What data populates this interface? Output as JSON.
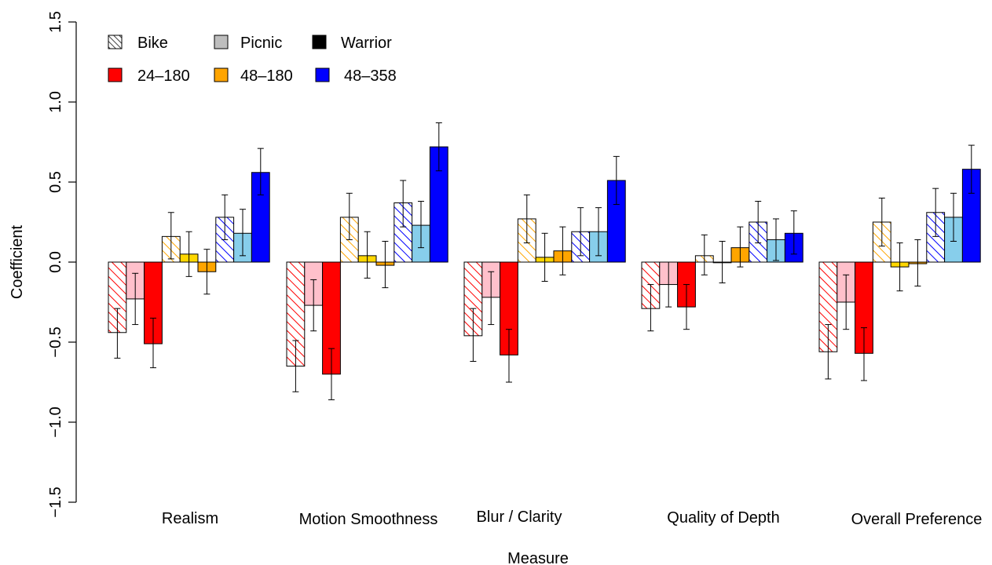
{
  "chart_data": {
    "type": "bar",
    "xlabel": "Measure",
    "ylabel": "Coefficient",
    "ylim": [
      -1.5,
      1.5
    ],
    "yticks": [
      "-1.5",
      "-1.0",
      "-0.5",
      "0.0",
      "0.5",
      "1.0",
      "1.5"
    ],
    "categories": [
      "Realism",
      "Motion Smoothness",
      "Blur / Clarity",
      "Quality of Depth",
      "Overall Preference"
    ],
    "legend": {
      "position": "top-left",
      "scenes": [
        {
          "label": "Bike",
          "style": "hatched"
        },
        {
          "label": "Picnic",
          "style": "light"
        },
        {
          "label": "Warrior",
          "style": "solid"
        }
      ],
      "conditions": [
        {
          "label": "24–180",
          "color": "#ff0000"
        },
        {
          "label": "48–180",
          "color": "#ffa500"
        },
        {
          "label": "48–358",
          "color": "#0000ff"
        }
      ]
    },
    "colors": {
      "24-180": {
        "hatched": "#ff0000",
        "light": "#ffc0cb",
        "solid": "#ff0000"
      },
      "48-180": {
        "hatched": "#ffa500",
        "light": "#ffd700",
        "solid": "#ffa500"
      },
      "48-358": {
        "hatched": "#0000ff",
        "light": "#87ceeb",
        "solid": "#0000ff"
      }
    },
    "series": [
      {
        "condition": "24-180",
        "scene": "Bike",
        "values": [
          -0.44,
          -0.65,
          -0.46,
          -0.29,
          -0.56
        ],
        "ci": [
          [
            -0.6,
            -0.29
          ],
          [
            -0.81,
            -0.49
          ],
          [
            -0.62,
            -0.29
          ],
          [
            -0.43,
            -0.14
          ],
          [
            -0.73,
            -0.39
          ]
        ]
      },
      {
        "condition": "24-180",
        "scene": "Picnic",
        "values": [
          -0.23,
          -0.27,
          -0.22,
          -0.14,
          -0.25
        ],
        "ci": [
          [
            -0.39,
            -0.07
          ],
          [
            -0.43,
            -0.11
          ],
          [
            -0.39,
            -0.06
          ],
          [
            -0.28,
            0.0
          ],
          [
            -0.42,
            -0.08
          ]
        ]
      },
      {
        "condition": "24-180",
        "scene": "Warrior",
        "values": [
          -0.51,
          -0.7,
          -0.58,
          -0.28,
          -0.57
        ],
        "ci": [
          [
            -0.66,
            -0.35
          ],
          [
            -0.86,
            -0.54
          ],
          [
            -0.75,
            -0.42
          ],
          [
            -0.42,
            -0.14
          ],
          [
            -0.74,
            -0.41
          ]
        ]
      },
      {
        "condition": "48-180",
        "scene": "Bike",
        "values": [
          0.16,
          0.28,
          0.27,
          0.04,
          0.25
        ],
        "ci": [
          [
            0.02,
            0.31
          ],
          [
            0.14,
            0.43
          ],
          [
            0.12,
            0.42
          ],
          [
            -0.08,
            0.17
          ],
          [
            0.1,
            0.4
          ]
        ]
      },
      {
        "condition": "48-180",
        "scene": "Picnic",
        "values": [
          0.05,
          0.04,
          0.03,
          0.0,
          -0.03
        ],
        "ci": [
          [
            -0.09,
            0.19
          ],
          [
            -0.1,
            0.19
          ],
          [
            -0.12,
            0.18
          ],
          [
            -0.13,
            0.13
          ],
          [
            -0.18,
            0.12
          ]
        ]
      },
      {
        "condition": "48-180",
        "scene": "Warrior",
        "values": [
          -0.06,
          -0.02,
          0.07,
          0.09,
          -0.01
        ],
        "ci": [
          [
            -0.2,
            0.08
          ],
          [
            -0.16,
            0.13
          ],
          [
            -0.08,
            0.22
          ],
          [
            -0.03,
            0.22
          ],
          [
            -0.15,
            0.14
          ]
        ]
      },
      {
        "condition": "48-358",
        "scene": "Bike",
        "values": [
          0.28,
          0.37,
          0.19,
          0.25,
          0.31
        ],
        "ci": [
          [
            0.14,
            0.42
          ],
          [
            0.22,
            0.51
          ],
          [
            0.04,
            0.34
          ],
          [
            0.12,
            0.38
          ],
          [
            0.16,
            0.46
          ]
        ]
      },
      {
        "condition": "48-358",
        "scene": "Picnic",
        "values": [
          0.18,
          0.23,
          0.19,
          0.14,
          0.28
        ],
        "ci": [
          [
            0.04,
            0.33
          ],
          [
            0.09,
            0.38
          ],
          [
            0.04,
            0.34
          ],
          [
            0.01,
            0.27
          ],
          [
            0.13,
            0.43
          ]
        ]
      },
      {
        "condition": "48-358",
        "scene": "Warrior",
        "values": [
          0.56,
          0.72,
          0.51,
          0.18,
          0.58
        ],
        "ci": [
          [
            0.42,
            0.71
          ],
          [
            0.57,
            0.87
          ],
          [
            0.36,
            0.66
          ],
          [
            0.05,
            0.32
          ],
          [
            0.43,
            0.73
          ]
        ]
      }
    ]
  }
}
